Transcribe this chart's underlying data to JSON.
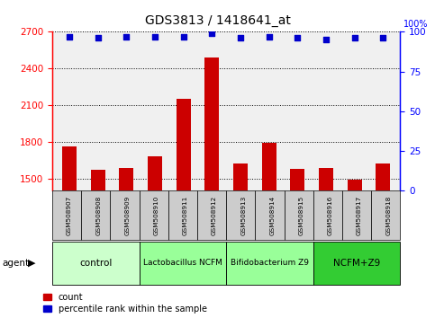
{
  "title": "GDS3813 / 1418641_at",
  "samples": [
    "GSM508907",
    "GSM508908",
    "GSM508909",
    "GSM508910",
    "GSM508911",
    "GSM508912",
    "GSM508913",
    "GSM508914",
    "GSM508915",
    "GSM508916",
    "GSM508917",
    "GSM508918"
  ],
  "counts": [
    1760,
    1570,
    1590,
    1680,
    2150,
    2490,
    1620,
    1790,
    1580,
    1590,
    1490,
    1620
  ],
  "percentile_ranks": [
    97,
    96,
    97,
    97,
    97,
    99,
    96,
    97,
    96,
    95,
    96,
    96
  ],
  "ylim_left": [
    1400,
    2700
  ],
  "yticks_left": [
    1500,
    1800,
    2100,
    2400,
    2700
  ],
  "ylim_right": [
    0,
    100
  ],
  "yticks_right": [
    0,
    25,
    50,
    75,
    100
  ],
  "bar_color": "#cc0000",
  "dot_color": "#0000cc",
  "bar_width": 0.5,
  "groups": [
    {
      "label": "control",
      "start": 0,
      "end": 3,
      "color": "#ccffcc"
    },
    {
      "label": "Lactobacillus NCFM",
      "start": 3,
      "end": 6,
      "color": "#99ff99"
    },
    {
      "label": "Bifidobacterium Z9",
      "start": 6,
      "end": 9,
      "color": "#99ff99"
    },
    {
      "label": "NCFM+Z9",
      "start": 9,
      "end": 12,
      "color": "#33cc33"
    }
  ],
  "agent_label": "agent",
  "legend_count_label": "count",
  "legend_percentile_label": "percentile rank within the sample",
  "plot_bg_color": "#f0f0f0"
}
